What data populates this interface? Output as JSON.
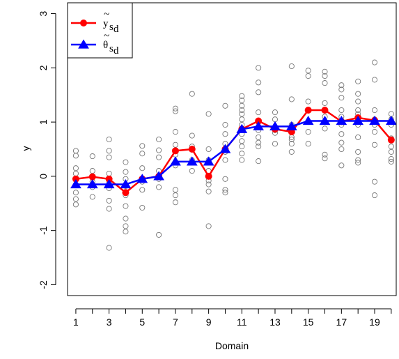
{
  "chart_data": {
    "type": "line",
    "title": "",
    "xlabel": "Domain",
    "ylabel": "y",
    "xlim": [
      0.5,
      20.3
    ],
    "ylim": [
      -2.2,
      3.2
    ],
    "x_ticks": [
      1,
      3,
      5,
      7,
      9,
      11,
      13,
      15,
      17,
      19
    ],
    "x_minor_ticks": [
      1,
      2,
      3,
      4,
      5,
      6,
      7,
      8,
      9,
      10,
      11,
      12,
      13,
      14,
      15,
      16,
      17,
      18,
      19,
      20
    ],
    "x_tick_labels": [
      "1",
      "3",
      "5",
      "7",
      "9",
      "11",
      "13",
      "15",
      "17",
      "19"
    ],
    "y_ticks": [
      -2,
      -1,
      0,
      1,
      2,
      3
    ],
    "y_tick_labels": [
      "-2",
      "-1",
      "0",
      "1",
      "2",
      "3"
    ],
    "grid": false,
    "legend_position": "top-left",
    "series": [
      {
        "name_main": "y",
        "name_accent": "~",
        "name_sub": "s",
        "name_subsub": "d",
        "color": "#ff0000",
        "marker": "filled-circle",
        "x": [
          1,
          2,
          3,
          4,
          5,
          6,
          7,
          8,
          9,
          10,
          11,
          12,
          13,
          14,
          15,
          16,
          17,
          18,
          19,
          20
        ],
        "values": [
          -0.05,
          -0.01,
          -0.05,
          -0.3,
          -0.05,
          0.0,
          0.47,
          0.5,
          0.0,
          0.5,
          0.87,
          1.02,
          0.87,
          0.82,
          1.22,
          1.22,
          1.01,
          1.08,
          1.03,
          0.67
        ]
      },
      {
        "name_main": "θ",
        "name_accent": "~",
        "name_sub": "s",
        "name_subsub": "d",
        "color": "#0000ff",
        "marker": "filled-triangle",
        "x": [
          1,
          2,
          3,
          4,
          5,
          6,
          7,
          8,
          9,
          10,
          11,
          12,
          13,
          14,
          15,
          16,
          17,
          18,
          19,
          20
        ],
        "values": [
          -0.15,
          -0.15,
          -0.15,
          -0.15,
          -0.05,
          0.0,
          0.27,
          0.27,
          0.27,
          0.5,
          0.87,
          0.92,
          0.92,
          0.92,
          1.02,
          1.02,
          1.02,
          1.02,
          1.02,
          1.02
        ]
      }
    ],
    "scatter": {
      "color": "#777777",
      "marker": "open-circle",
      "points": [
        [
          1,
          0.47
        ],
        [
          1,
          0.38
        ],
        [
          1,
          0.15
        ],
        [
          1,
          0.05
        ],
        [
          1,
          -0.05
        ],
        [
          1,
          -0.15
        ],
        [
          1,
          -0.3
        ],
        [
          1,
          -0.42
        ],
        [
          1,
          -0.52
        ],
        [
          2,
          0.37
        ],
        [
          2,
          0.1
        ],
        [
          2,
          -0.1
        ],
        [
          2,
          -0.2
        ],
        [
          2,
          -0.38
        ],
        [
          3,
          0.68
        ],
        [
          3,
          0.47
        ],
        [
          3,
          0.35
        ],
        [
          3,
          0.05
        ],
        [
          3,
          -0.12
        ],
        [
          3,
          -0.22
        ],
        [
          3,
          -0.45
        ],
        [
          3,
          -0.6
        ],
        [
          3,
          -1.32
        ],
        [
          4,
          0.26
        ],
        [
          4,
          0.08
        ],
        [
          4,
          -0.05
        ],
        [
          4,
          -0.18
        ],
        [
          4,
          -0.35
        ],
        [
          4,
          -0.55
        ],
        [
          4,
          -0.78
        ],
        [
          4,
          -0.92
        ],
        [
          4,
          -1.02
        ],
        [
          5,
          0.56
        ],
        [
          5,
          0.42
        ],
        [
          5,
          0.15
        ],
        [
          5,
          -0.1
        ],
        [
          5,
          -0.25
        ],
        [
          5,
          -0.58
        ],
        [
          6,
          0.68
        ],
        [
          6,
          0.48
        ],
        [
          6,
          0.35
        ],
        [
          6,
          0.1
        ],
        [
          6,
          -0.05
        ],
        [
          6,
          -0.2
        ],
        [
          6,
          -1.08
        ],
        [
          7,
          1.25
        ],
        [
          7,
          1.2
        ],
        [
          7,
          0.82
        ],
        [
          7,
          0.58
        ],
        [
          7,
          0.4
        ],
        [
          7,
          0.2
        ],
        [
          7,
          -0.25
        ],
        [
          7,
          -0.35
        ],
        [
          7,
          -0.48
        ],
        [
          8,
          1.52
        ],
        [
          8,
          0.75
        ],
        [
          8,
          0.55
        ],
        [
          8,
          0.3
        ],
        [
          8,
          0.1
        ],
        [
          9,
          1.15
        ],
        [
          9,
          0.5
        ],
        [
          9,
          0.3
        ],
        [
          9,
          0.1
        ],
        [
          9,
          -0.08
        ],
        [
          9,
          -0.15
        ],
        [
          9,
          -0.28
        ],
        [
          9,
          -0.92
        ],
        [
          10,
          1.3
        ],
        [
          10,
          0.95
        ],
        [
          10,
          0.78
        ],
        [
          10,
          0.6
        ],
        [
          10,
          0.45
        ],
        [
          10,
          0.3
        ],
        [
          10,
          -0.05
        ],
        [
          10,
          -0.25
        ],
        [
          10,
          -0.3
        ],
        [
          11,
          1.48
        ],
        [
          11,
          1.4
        ],
        [
          11,
          1.3
        ],
        [
          11,
          1.22
        ],
        [
          11,
          1.15
        ],
        [
          11,
          1.05
        ],
        [
          11,
          0.95
        ],
        [
          11,
          0.78
        ],
        [
          11,
          0.65
        ],
        [
          11,
          0.55
        ],
        [
          11,
          0.42
        ],
        [
          11,
          0.3
        ],
        [
          12,
          2.0
        ],
        [
          12,
          1.73
        ],
        [
          12,
          1.55
        ],
        [
          12,
          1.18
        ],
        [
          12,
          1.0
        ],
        [
          12,
          0.85
        ],
        [
          12,
          0.72
        ],
        [
          12,
          0.62
        ],
        [
          12,
          0.55
        ],
        [
          12,
          0.28
        ],
        [
          13,
          1.18
        ],
        [
          13,
          1.05
        ],
        [
          13,
          0.85
        ],
        [
          13,
          0.8
        ],
        [
          13,
          0.6
        ],
        [
          14,
          2.03
        ],
        [
          14,
          1.42
        ],
        [
          14,
          0.95
        ],
        [
          14,
          0.88
        ],
        [
          14,
          0.72
        ],
        [
          14,
          0.68
        ],
        [
          14,
          0.6
        ],
        [
          14,
          0.45
        ],
        [
          15,
          1.95
        ],
        [
          15,
          1.85
        ],
        [
          15,
          1.38
        ],
        [
          15,
          1.22
        ],
        [
          15,
          1.0
        ],
        [
          15,
          0.82
        ],
        [
          15,
          0.6
        ],
        [
          16,
          1.93
        ],
        [
          16,
          1.85
        ],
        [
          16,
          1.72
        ],
        [
          16,
          1.35
        ],
        [
          16,
          1.1
        ],
        [
          16,
          0.88
        ],
        [
          16,
          0.4
        ],
        [
          16,
          0.33
        ],
        [
          17,
          1.68
        ],
        [
          17,
          1.6
        ],
        [
          17,
          1.45
        ],
        [
          17,
          1.22
        ],
        [
          17,
          1.1
        ],
        [
          17,
          0.95
        ],
        [
          17,
          0.78
        ],
        [
          17,
          0.62
        ],
        [
          17,
          0.5
        ],
        [
          17,
          0.2
        ],
        [
          18,
          1.75
        ],
        [
          18,
          1.52
        ],
        [
          18,
          1.38
        ],
        [
          18,
          1.22
        ],
        [
          18,
          1.15
        ],
        [
          18,
          1.05
        ],
        [
          18,
          0.95
        ],
        [
          18,
          0.72
        ],
        [
          18,
          0.45
        ],
        [
          18,
          0.3
        ],
        [
          18,
          0.25
        ],
        [
          19,
          2.1
        ],
        [
          19,
          1.78
        ],
        [
          19,
          1.22
        ],
        [
          19,
          1.05
        ],
        [
          19,
          0.95
        ],
        [
          19,
          0.82
        ],
        [
          19,
          0.58
        ],
        [
          19,
          -0.1
        ],
        [
          19,
          -0.35
        ],
        [
          20,
          1.15
        ],
        [
          20,
          1.05
        ],
        [
          20,
          0.95
        ],
        [
          20,
          0.7
        ],
        [
          20,
          0.55
        ],
        [
          20,
          0.45
        ],
        [
          20,
          0.32
        ],
        [
          20,
          0.27
        ]
      ]
    }
  }
}
